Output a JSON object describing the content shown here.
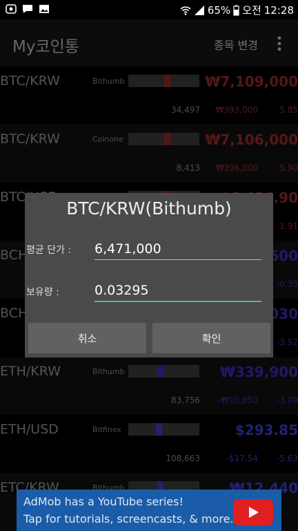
{
  "status": {
    "battery": "65%",
    "ampm": "오전",
    "time": "12:28"
  },
  "appbar": {
    "title": "My코인통",
    "action": "종목 변경"
  },
  "rows": [
    {
      "pair": "BTC/KRW",
      "exchange": "Bithumb",
      "price": "₩7,109,000",
      "volume": "34,497",
      "change": "₩393,000",
      "pct": "5.85",
      "color": "#9a2b2b",
      "marker_pos": 0.55
    },
    {
      "pair": "BTC/KRW",
      "exchange": "Coinone",
      "price": "₩7,106,000",
      "volume": "8,413",
      "change": "₩396,000",
      "pct": "5.90",
      "color": "#9a2b2b",
      "marker_pos": 0.55
    },
    {
      "pair": "BTC/USD",
      "exchange": "",
      "price": "$6,404.90",
      "volume": "",
      "change": "",
      "pct": "1.91",
      "color": "#9a2b2b",
      "marker_pos": 0.55
    },
    {
      "pair": "BCH/KRW",
      "exchange": "",
      "price": "₩1,600",
      "volume": "",
      "change": "",
      "pct": "-0.35",
      "color": "#3b2fb8",
      "marker_pos": 0.5
    },
    {
      "pair": "BCH/USD",
      "exchange": "",
      "price": "$1,030",
      "volume": "",
      "change": "",
      "pct": "-3.52",
      "color": "#3b2fb8",
      "marker_pos": 0.5
    },
    {
      "pair": "ETH/KRW",
      "exchange": "Bithumb",
      "price": "₩339,900",
      "volume": "83,756",
      "change": "-₩10,850",
      "pct": "-3.09",
      "color": "#3b2fb8",
      "marker_pos": 0.45
    },
    {
      "pair": "ETH/USD",
      "exchange": "Bitfinex",
      "price": "$293.85",
      "volume": "108,663",
      "change": "-$17.54",
      "pct": "-5.63",
      "color": "#3d3fcf",
      "marker_pos": 0.43
    },
    {
      "pair": "ETC/KRW",
      "exchange": "Bithumb",
      "price": "₩12,440",
      "volume": "",
      "change": "",
      "pct": "",
      "color": "#3d3fcf",
      "marker_pos": 0.45
    }
  ],
  "dialog": {
    "title": "BTC/KRW(Bithumb)",
    "avg_label": "평균 단가 :",
    "avg_value": "6,471,000",
    "qty_label": "보유량 :",
    "qty_value": "0.03295",
    "cancel": "취소",
    "confirm": "확인"
  },
  "ad": {
    "line1": "AdMob has a YouTube series!",
    "line2": "Tap for tutorials, screencasts, & more."
  }
}
